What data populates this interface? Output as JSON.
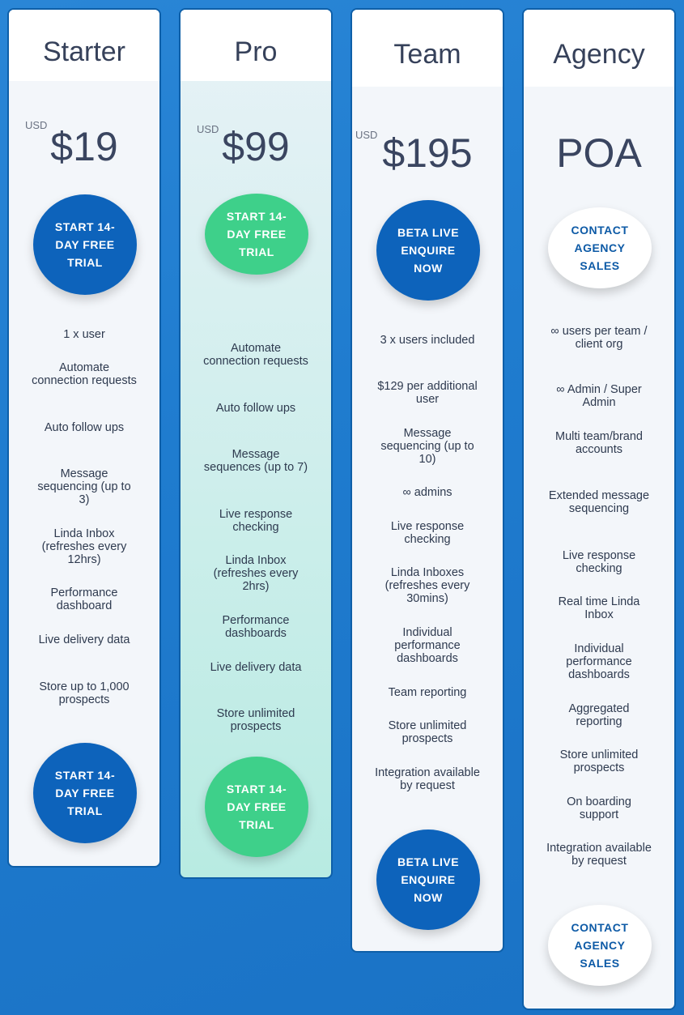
{
  "plans": [
    {
      "name": "Starter",
      "currency": "USD",
      "price": "$19",
      "cta_top": "START 14-DAY FREE TRIAL",
      "features": [
        "1 x user",
        "Automate connection requests",
        "Auto follow ups",
        "Message sequencing (up to 3)",
        "Linda Inbox (refreshes every 12hrs)",
        "Performance dashboard",
        "Live delivery data",
        "Store up to 1,000 prospects"
      ],
      "cta_bottom": "START 14-DAY FREE TRIAL"
    },
    {
      "name": "Pro",
      "currency": "USD",
      "price": "$99",
      "cta_top": "START 14-DAY FREE TRIAL",
      "features": [
        "Automate connection requests",
        "Auto follow ups",
        "Message sequences (up to 7)",
        "Live response checking",
        "Linda Inbox (refreshes every 2hrs)",
        "Performance dashboards",
        "Live delivery data",
        "Store unlimited prospects"
      ],
      "cta_bottom": "START 14-DAY FREE TRIAL"
    },
    {
      "name": "Team",
      "currency": "USD",
      "price": "$195",
      "cta_top": "BETA LIVE ENQUIRE NOW",
      "features": [
        "3 x users included",
        "$129 per additional user",
        "Message sequencing (up to 10)",
        "∞ admins",
        "Live response checking",
        "Linda Inboxes (refreshes every 30mins)",
        "Individual performance dashboards",
        "Team reporting",
        "Store unlimited prospects",
        "Integration available by request"
      ],
      "cta_bottom": "BETA LIVE ENQUIRE NOW"
    },
    {
      "name": "Agency",
      "currency": "",
      "price": "POA",
      "cta_top": "CONTACT AGENCY SALES",
      "features": [
        "∞ users per team / client org",
        "∞ Admin / Super Admin",
        "Multi team/brand accounts",
        "Extended message sequencing",
        "Live response checking",
        "Real time Linda Inbox",
        "Individual performance dashboards",
        "Aggregated reporting",
        "Store unlimited prospects",
        "On boarding support",
        "Integration available by request"
      ],
      "cta_bottom": "CONTACT AGENCY SALES"
    }
  ]
}
